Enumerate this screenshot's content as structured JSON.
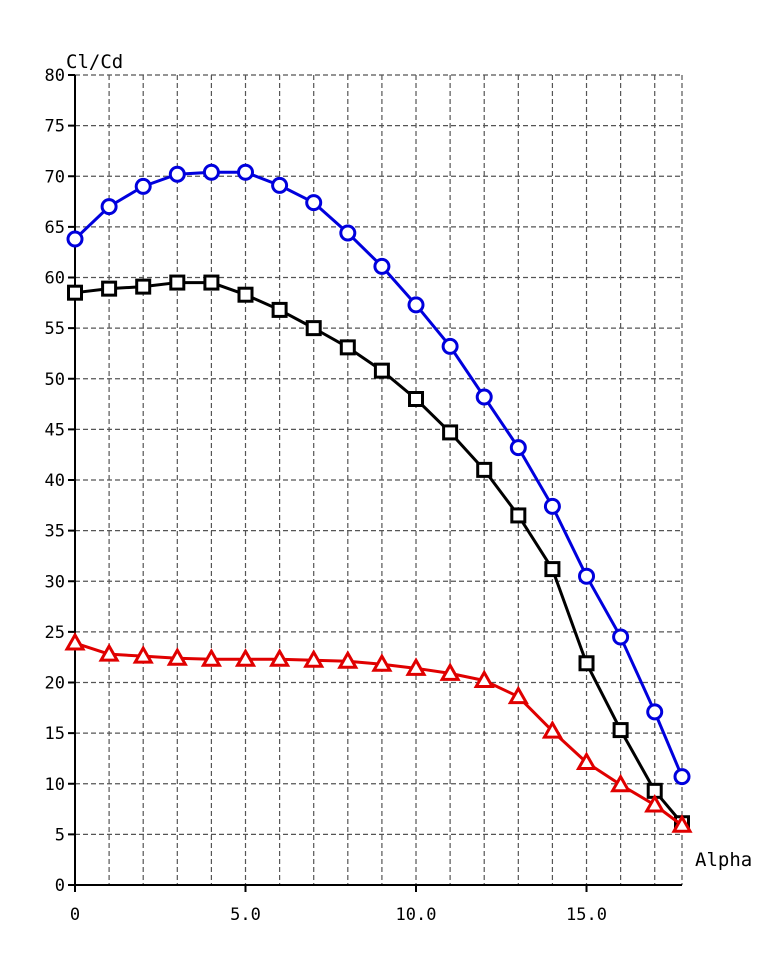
{
  "chart_data": {
    "type": "line",
    "xlabel": "Alpha",
    "ylabel": "Cl/Cd",
    "xlim": [
      0,
      17.8
    ],
    "ylim": [
      0,
      80
    ],
    "x_ticks": [
      0,
      5,
      10,
      15
    ],
    "x_tick_labels": [
      "0",
      "5.0",
      "10.0",
      "15.0"
    ],
    "y_ticks": [
      0,
      5,
      10,
      15,
      20,
      25,
      30,
      35,
      40,
      45,
      50,
      55,
      60,
      65,
      70,
      75,
      80
    ],
    "grid": true,
    "x": [
      0,
      1,
      2,
      3,
      4,
      5,
      6,
      7,
      8,
      9,
      10,
      11,
      12,
      13,
      14,
      15,
      16,
      17,
      17.8
    ],
    "series": [
      {
        "marker": "circle",
        "color": "#0000dd",
        "values": [
          63.8,
          67.0,
          69.0,
          70.2,
          70.4,
          70.4,
          69.1,
          67.4,
          64.4,
          61.1,
          57.3,
          53.2,
          48.2,
          43.2,
          37.4,
          30.5,
          24.5,
          17.1,
          10.7
        ]
      },
      {
        "marker": "square",
        "color": "#000000",
        "values": [
          58.5,
          58.9,
          59.1,
          59.5,
          59.5,
          58.3,
          56.8,
          55.0,
          53.1,
          50.8,
          48.0,
          44.7,
          41.0,
          36.5,
          31.2,
          21.9,
          15.3,
          9.3,
          6.1
        ]
      },
      {
        "marker": "triangle",
        "color": "#e00000",
        "values": [
          23.9,
          22.8,
          22.6,
          22.4,
          22.3,
          22.3,
          22.3,
          22.2,
          22.1,
          21.8,
          21.4,
          20.9,
          20.2,
          18.6,
          15.2,
          12.1,
          9.9,
          7.9,
          5.9
        ]
      }
    ]
  }
}
